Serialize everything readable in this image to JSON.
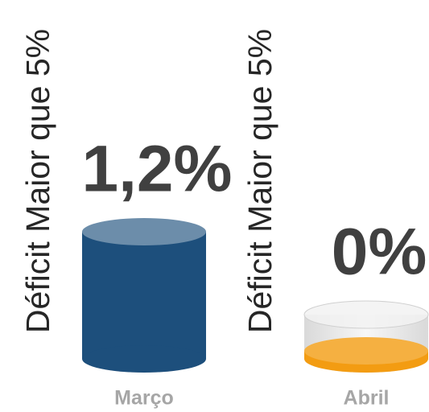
{
  "chart_data": [
    {
      "type": "bar",
      "y_label": "Déficit Maior que 5%",
      "categories": [
        "Março"
      ],
      "values": [
        1.2
      ],
      "value_labels": [
        "1,2%"
      ],
      "color": "#1d4f7c"
    },
    {
      "type": "bar",
      "y_label": "Déficit Maior que 5%",
      "categories": [
        "Abril"
      ],
      "values": [
        0
      ],
      "value_labels": [
        "0%"
      ],
      "color": "#f39c12"
    }
  ]
}
